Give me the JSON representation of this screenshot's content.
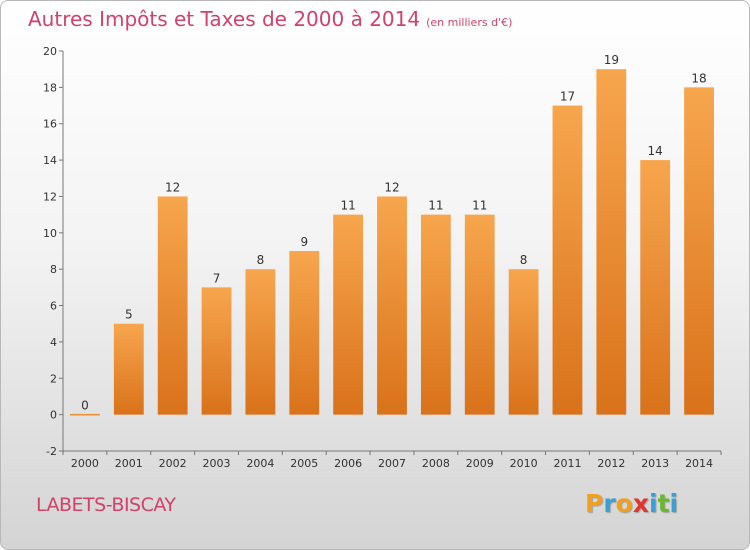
{
  "header": {
    "title": "Autres Impôts et Taxes de 2000 à 2014",
    "unit": "(en milliers d'€)"
  },
  "footer": {
    "location": "LABETS-BISCAY",
    "brand": {
      "letters": [
        "P",
        "r",
        "o",
        "x",
        "i",
        "t",
        "i"
      ],
      "colors": [
        "#f0a020",
        "#3a9fd6",
        "#f0a020",
        "#e0342c",
        "#3a9fd6",
        "#6ab92d",
        "#3a9fd6"
      ]
    }
  },
  "chart_data": {
    "type": "bar",
    "title": "Autres Impôts et Taxes de 2000 à 2014",
    "subtitle": "(en milliers d'€)",
    "categories": [
      "2000",
      "2001",
      "2002",
      "2003",
      "2004",
      "2005",
      "2006",
      "2007",
      "2008",
      "2009",
      "2010",
      "2011",
      "2012",
      "2013",
      "2014"
    ],
    "values": [
      0,
      5,
      12,
      7,
      8,
      9,
      11,
      12,
      11,
      11,
      8,
      17,
      19,
      14,
      18
    ],
    "ylim": [
      -2,
      20
    ],
    "yticks": [
      -2,
      0,
      2,
      4,
      6,
      8,
      10,
      12,
      14,
      16,
      18,
      20
    ],
    "grid": false,
    "bar_color_top": "#f7a64e",
    "bar_color_bottom": "#d9721a",
    "xlabel": "",
    "ylabel": ""
  }
}
